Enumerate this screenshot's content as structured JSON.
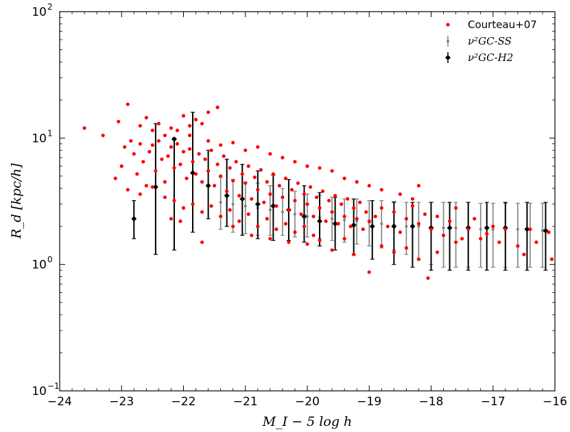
{
  "chart_data": {
    "type": "scatter",
    "title": "",
    "xlabel": "M_I − 5 log h",
    "ylabel": "R_d [kpc/h]",
    "xlim": [
      -24,
      -16
    ],
    "ylim": [
      0.1,
      100
    ],
    "yscale": "log",
    "grid": false,
    "legend_position": "top-right",
    "x_ticks": [
      {
        "value": -24,
        "label": "−24"
      },
      {
        "value": -23,
        "label": "−23"
      },
      {
        "value": -22,
        "label": "−22"
      },
      {
        "value": -21,
        "label": "−21"
      },
      {
        "value": -20,
        "label": "−20"
      },
      {
        "value": -19,
        "label": "−19"
      },
      {
        "value": -18,
        "label": "−18"
      },
      {
        "value": -17,
        "label": "−17"
      },
      {
        "value": -16,
        "label": "−16"
      }
    ],
    "y_ticks": [
      {
        "value": 0.1,
        "base": "10",
        "exp": "−1"
      },
      {
        "value": 1,
        "base": "10",
        "exp": "0"
      },
      {
        "value": 10,
        "base": "10",
        "exp": "1"
      },
      {
        "value": 100,
        "base": "10",
        "exp": "2"
      }
    ],
    "series": [
      {
        "name": "Courteau+07",
        "kind": "scatter",
        "color": "#ff0000",
        "points": [
          [
            -23.6,
            12.0
          ],
          [
            -23.3,
            10.5
          ],
          [
            -22.9,
            18.5
          ],
          [
            -23.05,
            13.5
          ],
          [
            -22.85,
            9.5
          ],
          [
            -22.7,
            12.5
          ],
          [
            -22.6,
            14.5
          ],
          [
            -22.5,
            11.5
          ],
          [
            -22.4,
            13.0
          ],
          [
            -22.3,
            10.5
          ],
          [
            -22.2,
            12.0
          ],
          [
            -22.1,
            11.5
          ],
          [
            -22.0,
            15.0
          ],
          [
            -21.9,
            12.5
          ],
          [
            -21.8,
            14.0
          ],
          [
            -21.6,
            16.0
          ],
          [
            -21.45,
            17.5
          ],
          [
            -21.7,
            13.0
          ],
          [
            -23.1,
            4.8
          ],
          [
            -23.0,
            6.0
          ],
          [
            -22.95,
            8.5
          ],
          [
            -22.8,
            7.5
          ],
          [
            -22.75,
            5.2
          ],
          [
            -22.7,
            9.0
          ],
          [
            -22.65,
            6.5
          ],
          [
            -22.6,
            4.2
          ],
          [
            -22.55,
            7.8
          ],
          [
            -22.5,
            8.8
          ],
          [
            -22.45,
            5.5
          ],
          [
            -22.4,
            9.5
          ],
          [
            -22.35,
            6.8
          ],
          [
            -22.3,
            4.5
          ],
          [
            -22.25,
            7.2
          ],
          [
            -22.2,
            8.5
          ],
          [
            -22.15,
            5.8
          ],
          [
            -22.1,
            9.0
          ],
          [
            -22.05,
            6.2
          ],
          [
            -22.0,
            7.8
          ],
          [
            -21.95,
            4.8
          ],
          [
            -21.9,
            8.2
          ],
          [
            -21.85,
            6.5
          ],
          [
            -21.8,
            5.2
          ],
          [
            -21.75,
            7.5
          ],
          [
            -21.7,
            4.5
          ],
          [
            -21.65,
            6.8
          ],
          [
            -21.6,
            5.5
          ],
          [
            -21.55,
            8.0
          ],
          [
            -21.5,
            4.2
          ],
          [
            -21.45,
            6.2
          ],
          [
            -21.4,
            5.0
          ],
          [
            -21.35,
            7.2
          ],
          [
            -21.3,
            3.8
          ],
          [
            -21.25,
            5.8
          ],
          [
            -21.2,
            4.6
          ],
          [
            -21.15,
            6.5
          ],
          [
            -21.1,
            3.5
          ],
          [
            -21.05,
            5.2
          ],
          [
            -21.0,
            4.4
          ],
          [
            -20.95,
            6.0
          ],
          [
            -20.9,
            3.3
          ],
          [
            -20.85,
            4.9
          ],
          [
            -20.8,
            3.9
          ],
          [
            -20.75,
            5.6
          ],
          [
            -20.7,
            3.1
          ],
          [
            -20.65,
            4.5
          ],
          [
            -20.6,
            3.6
          ],
          [
            -20.55,
            5.2
          ],
          [
            -20.5,
            2.9
          ],
          [
            -20.45,
            4.2
          ],
          [
            -20.4,
            3.4
          ],
          [
            -20.35,
            4.8
          ],
          [
            -20.3,
            2.7
          ],
          [
            -20.25,
            3.9
          ],
          [
            -20.2,
            3.2
          ],
          [
            -20.15,
            4.4
          ],
          [
            -20.1,
            2.5
          ],
          [
            -20.05,
            3.6
          ],
          [
            -20.0,
            3.0
          ],
          [
            -19.95,
            4.1
          ],
          [
            -19.9,
            2.4
          ],
          [
            -19.85,
            3.4
          ],
          [
            -19.8,
            2.8
          ],
          [
            -19.75,
            3.8
          ],
          [
            -19.7,
            2.2
          ],
          [
            -19.65,
            3.2
          ],
          [
            -19.6,
            2.6
          ],
          [
            -19.55,
            3.5
          ],
          [
            -19.5,
            2.1
          ],
          [
            -19.45,
            3.0
          ],
          [
            -19.4,
            2.4
          ],
          [
            -19.35,
            3.3
          ],
          [
            -19.3,
            2.0
          ],
          [
            -19.25,
            2.8
          ],
          [
            -19.2,
            2.3
          ],
          [
            -19.15,
            3.1
          ],
          [
            -19.1,
            1.9
          ],
          [
            -19.05,
            2.6
          ],
          [
            -19.0,
            2.2
          ],
          [
            -22.9,
            3.9
          ],
          [
            -22.7,
            3.6
          ],
          [
            -22.5,
            4.1
          ],
          [
            -22.3,
            3.4
          ],
          [
            -22.15,
            3.2
          ],
          [
            -22.0,
            2.8
          ],
          [
            -21.85,
            3.0
          ],
          [
            -21.7,
            2.6
          ],
          [
            -21.55,
            2.9
          ],
          [
            -21.4,
            2.4
          ],
          [
            -21.25,
            2.7
          ],
          [
            -21.1,
            2.2
          ],
          [
            -20.95,
            2.5
          ],
          [
            -20.8,
            2.0
          ],
          [
            -20.65,
            2.3
          ],
          [
            -20.5,
            1.9
          ],
          [
            -20.35,
            2.1
          ],
          [
            -20.2,
            1.8
          ],
          [
            -20.05,
            2.0
          ],
          [
            -19.9,
            1.7
          ],
          [
            -22.2,
            2.3
          ],
          [
            -22.05,
            2.2
          ],
          [
            -21.7,
            1.5
          ],
          [
            -21.2,
            2.0
          ],
          [
            -20.9,
            1.7
          ],
          [
            -20.6,
            1.6
          ],
          [
            -20.3,
            1.5
          ],
          [
            -20.0,
            1.45
          ],
          [
            -19.8,
            1.55
          ],
          [
            -19.6,
            1.3
          ],
          [
            -19.4,
            1.6
          ],
          [
            -19.25,
            1.2
          ],
          [
            -19.0,
            0.87
          ],
          [
            -18.8,
            1.4
          ],
          [
            -18.6,
            1.25
          ],
          [
            -18.4,
            1.35
          ],
          [
            -18.2,
            1.1
          ],
          [
            -18.05,
            0.78
          ],
          [
            -17.9,
            1.25
          ],
          [
            -17.6,
            1.5
          ],
          [
            -18.9,
            2.4
          ],
          [
            -18.8,
            2.8
          ],
          [
            -18.7,
            2.0
          ],
          [
            -18.6,
            2.6
          ],
          [
            -18.5,
            1.8
          ],
          [
            -18.4,
            2.3
          ],
          [
            -18.3,
            2.9
          ],
          [
            -18.2,
            2.1
          ],
          [
            -18.1,
            2.5
          ],
          [
            -18.0,
            1.9
          ],
          [
            -17.9,
            2.4
          ],
          [
            -17.8,
            1.7
          ],
          [
            -17.7,
            2.2
          ],
          [
            -17.6,
            2.8
          ],
          [
            -17.4,
            1.9
          ],
          [
            -17.3,
            2.3
          ],
          [
            -17.2,
            1.6
          ],
          [
            -17.0,
            2.0
          ],
          [
            -16.8,
            1.9
          ],
          [
            -16.6,
            1.4
          ],
          [
            -16.5,
            1.2
          ],
          [
            -16.4,
            1.9
          ],
          [
            -16.3,
            1.5
          ],
          [
            -16.1,
            1.8
          ],
          [
            -16.05,
            1.1
          ],
          [
            -17.5,
            1.6
          ],
          [
            -17.1,
            1.75
          ],
          [
            -16.9,
            1.5
          ],
          [
            -21.9,
            10.5
          ],
          [
            -21.6,
            9.5
          ],
          [
            -21.4,
            8.8
          ],
          [
            -21.2,
            9.2
          ],
          [
            -21.0,
            8.0
          ],
          [
            -20.8,
            8.5
          ],
          [
            -20.6,
            7.5
          ],
          [
            -20.4,
            7.0
          ],
          [
            -20.2,
            6.5
          ],
          [
            -20.0,
            6.0
          ],
          [
            -19.8,
            5.8
          ],
          [
            -19.6,
            5.5
          ],
          [
            -19.4,
            4.8
          ],
          [
            -19.2,
            4.5
          ],
          [
            -19.0,
            4.2
          ],
          [
            -18.8,
            3.9
          ],
          [
            -18.5,
            3.6
          ],
          [
            -18.3,
            3.3
          ],
          [
            -18.2,
            4.2
          ]
        ]
      },
      {
        "name": "ν²GC-SS",
        "kind": "errorbar",
        "color": "#808080",
        "points": [
          [
            -21.4,
            3.1,
            1.9,
            4.9
          ],
          [
            -21.2,
            3.0,
            1.8,
            4.7
          ],
          [
            -21.0,
            2.9,
            1.75,
            4.5
          ],
          [
            -20.8,
            2.8,
            1.7,
            4.4
          ],
          [
            -20.6,
            2.7,
            1.7,
            4.2
          ],
          [
            -20.4,
            2.6,
            1.7,
            4.0
          ],
          [
            -20.2,
            2.5,
            1.65,
            3.8
          ],
          [
            -20.0,
            2.4,
            1.65,
            3.6
          ],
          [
            -19.8,
            2.35,
            1.6,
            3.5
          ],
          [
            -19.6,
            2.3,
            1.55,
            3.4
          ],
          [
            -19.4,
            2.25,
            1.5,
            3.3
          ],
          [
            -19.2,
            2.2,
            1.45,
            3.3
          ],
          [
            -19.0,
            2.15,
            1.4,
            3.2
          ],
          [
            -18.8,
            2.1,
            1.35,
            3.2
          ],
          [
            -18.6,
            2.05,
            1.3,
            3.15
          ],
          [
            -18.4,
            2.0,
            1.2,
            3.1
          ],
          [
            -18.2,
            2.0,
            1.1,
            3.1
          ],
          [
            -18.0,
            1.95,
            1.0,
            3.1
          ],
          [
            -17.8,
            1.95,
            0.95,
            3.1
          ],
          [
            -17.6,
            1.95,
            0.95,
            3.1
          ],
          [
            -17.4,
            1.95,
            0.95,
            3.1
          ],
          [
            -17.2,
            1.9,
            0.95,
            3.05
          ],
          [
            -17.0,
            1.9,
            0.95,
            3.05
          ],
          [
            -16.8,
            1.9,
            0.95,
            3.05
          ],
          [
            -16.6,
            1.9,
            0.95,
            3.05
          ],
          [
            -16.4,
            1.9,
            0.95,
            3.05
          ],
          [
            -16.2,
            1.85,
            0.95,
            3.05
          ]
        ]
      },
      {
        "name": "ν²GC-H2",
        "kind": "errorbar",
        "color": "#000000",
        "points": [
          [
            -22.8,
            2.3,
            1.6,
            3.2
          ],
          [
            -22.45,
            4.1,
            1.2,
            13.0
          ],
          [
            -22.15,
            9.8,
            1.3,
            10.0
          ],
          [
            -21.85,
            5.3,
            1.8,
            16.0
          ],
          [
            -21.6,
            4.2,
            2.3,
            8.0
          ],
          [
            -21.3,
            3.5,
            2.0,
            6.8
          ],
          [
            -21.05,
            3.3,
            1.7,
            6.2
          ],
          [
            -20.8,
            3.0,
            1.6,
            5.5
          ],
          [
            -20.55,
            2.9,
            1.55,
            5.1
          ],
          [
            -20.3,
            2.7,
            1.55,
            4.7
          ],
          [
            -20.05,
            2.4,
            1.5,
            4.2
          ],
          [
            -19.8,
            2.2,
            1.4,
            3.7
          ],
          [
            -19.55,
            2.1,
            1.3,
            3.4
          ],
          [
            -19.25,
            2.05,
            1.2,
            3.3
          ],
          [
            -18.95,
            2.0,
            1.1,
            3.2
          ],
          [
            -18.6,
            2.0,
            1.0,
            3.1
          ],
          [
            -18.3,
            2.0,
            0.95,
            3.1
          ],
          [
            -18.0,
            1.95,
            0.9,
            3.1
          ],
          [
            -17.7,
            1.95,
            0.9,
            3.1
          ],
          [
            -17.4,
            1.95,
            0.9,
            3.1
          ],
          [
            -17.1,
            1.95,
            0.9,
            3.1
          ],
          [
            -16.8,
            1.95,
            0.9,
            3.1
          ],
          [
            -16.45,
            1.9,
            0.9,
            3.1
          ],
          [
            -16.15,
            1.85,
            0.9,
            3.1
          ]
        ]
      }
    ]
  }
}
